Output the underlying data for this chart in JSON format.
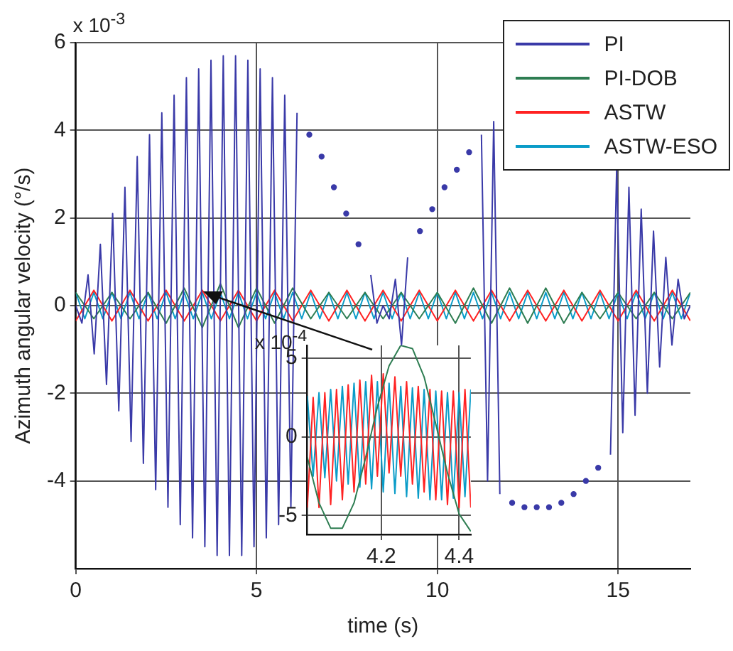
{
  "chart_data": [
    {
      "type": "line",
      "xlabel": "time (s)",
      "ylabel": "Azimuth angular velocity (°/s)",
      "xlim": [
        0,
        17
      ],
      "xticks": [
        0,
        5,
        10,
        15
      ],
      "ylim": [
        -6,
        6
      ],
      "yticks": [
        -4,
        -2,
        0,
        2,
        4,
        6
      ],
      "grid": true,
      "legend": "top right",
      "annotations": [
        "x 10$^{-3}$"
      ],
      "series": [
        {
          "name": "PI",
          "color": "#3a3aa8",
          "x": [
            0,
            0.17,
            0.34,
            0.51,
            0.68,
            0.85,
            1.02,
            1.19,
            1.36,
            1.53,
            1.7,
            1.87,
            2.04,
            2.21,
            2.38,
            2.55,
            2.72,
            2.89,
            3.06,
            3.23,
            3.4,
            3.57,
            3.74,
            3.91,
            4.08,
            4.25,
            4.42,
            4.59,
            4.76,
            4.93,
            5.1,
            5.27,
            5.44,
            5.61,
            5.78,
            5.95,
            6.12,
            6.29,
            6.46,
            6.63,
            6.8,
            6.97,
            7.14,
            7.31,
            7.48,
            7.65,
            7.82,
            7.99,
            8.16,
            8.33,
            8.5,
            8.67,
            8.84,
            9.01,
            9.18,
            9.35,
            9.52,
            9.69,
            9.86,
            10.03,
            10.2,
            10.37,
            10.54,
            10.71,
            10.88,
            11.05,
            11.22,
            11.39,
            11.56,
            11.73,
            11.9,
            12.07,
            12.24,
            12.41,
            12.58,
            12.75,
            12.92,
            13.09,
            13.26,
            13.43,
            13.6,
            13.77,
            13.94,
            14.11,
            14.28,
            14.45,
            14.62,
            14.79,
            14.96,
            15.13,
            15.3,
            15.47,
            15.64,
            15.81,
            15.98,
            16.15,
            16.32,
            16.49,
            16.66,
            16.83,
            17
          ],
          "values": [
            0,
            -0.4,
            0.7,
            -1.1,
            1.4,
            -1.8,
            2.1,
            -2.4,
            2.7,
            -3.1,
            3.4,
            -3.6,
            3.9,
            -4.2,
            4.4,
            -4.6,
            4.8,
            -5.0,
            5.2,
            -5.3,
            5.4,
            -5.5,
            5.6,
            -5.7,
            5.7,
            -5.7,
            5.7,
            -5.7,
            5.6,
            -5.5,
            5.4,
            -5.3,
            5.2,
            -5.0,
            4.8,
            -4.6,
            4.4,
            null,
            3.9,
            null,
            3.4,
            null,
            2.7,
            null,
            2.1,
            null,
            1.4,
            null,
            0.7,
            -0.4,
            0,
            -0.3,
            0.6,
            -0.9,
            1.1,
            null,
            1.7,
            null,
            2.2,
            null,
            2.7,
            null,
            3.1,
            null,
            3.5,
            null,
            3.9,
            -4.0,
            4.2,
            -4.3,
            null,
            -4.5,
            null,
            -4.6,
            null,
            -4.6,
            null,
            -4.6,
            null,
            -4.5,
            null,
            -4.3,
            null,
            -4.0,
            null,
            -3.7,
            null,
            -3.4,
            3.1,
            -2.9,
            2.7,
            -2.5,
            2.2,
            -2.0,
            1.7,
            -1.4,
            1.1,
            -0.9,
            0.6,
            -0.3,
            0
          ]
        },
        {
          "name": "PI-DOB",
          "color": "#2e7d52",
          "x": [
            0,
            0.5,
            1,
            1.5,
            2,
            2.5,
            3,
            3.5,
            4,
            4.5,
            5,
            5.5,
            6,
            6.5,
            7,
            7.5,
            8,
            8.5,
            9,
            9.5,
            10,
            10.5,
            11,
            11.5,
            12,
            12.5,
            13,
            13.5,
            14,
            14.5,
            15,
            15.5,
            16,
            16.5,
            17
          ],
          "values": [
            0.3,
            -0.3,
            0.3,
            -0.3,
            0.3,
            -0.4,
            0.4,
            -0.5,
            0.5,
            -0.5,
            0.4,
            -0.4,
            0.4,
            -0.3,
            0.3,
            -0.3,
            0.3,
            -0.3,
            0.3,
            -0.3,
            0.3,
            -0.4,
            0.4,
            -0.4,
            0.4,
            -0.4,
            0.4,
            -0.4,
            0.3,
            -0.3,
            0.3,
            -0.3,
            0.3,
            -0.3,
            0.3
          ]
        },
        {
          "name": "ASTW",
          "color": "#ff2222",
          "x": [
            0,
            0.5,
            1,
            1.5,
            2,
            2.5,
            3,
            3.5,
            4,
            4.5,
            5,
            5.5,
            6,
            6.5,
            7,
            7.5,
            8,
            8.5,
            9,
            9.5,
            10,
            10.5,
            11,
            11.5,
            12,
            12.5,
            13,
            13.5,
            14,
            14.5,
            15,
            15.5,
            16,
            16.5,
            17
          ],
          "values": [
            -0.35,
            0.35,
            -0.35,
            0.35,
            -0.35,
            0.35,
            -0.35,
            0.35,
            -0.35,
            0.35,
            -0.35,
            0.35,
            -0.35,
            0.35,
            -0.35,
            0.35,
            -0.35,
            0.35,
            -0.35,
            0.35,
            -0.35,
            0.35,
            -0.35,
            0.35,
            -0.35,
            0.35,
            -0.35,
            0.35,
            -0.35,
            0.35,
            -0.35,
            0.35,
            -0.35,
            0.35,
            -0.35
          ]
        },
        {
          "name": "ASTW-ESO",
          "color": "#0a9cc8",
          "x": [
            0,
            0.25,
            0.5,
            0.75,
            1,
            1.25,
            1.5,
            1.75,
            2,
            2.25,
            2.5,
            2.75,
            3,
            3.25,
            3.5,
            3.75,
            4,
            4.25,
            4.5,
            4.75,
            5,
            5.25,
            5.5,
            5.75,
            6,
            6.25,
            6.5,
            6.75,
            7,
            7.25,
            7.5,
            7.75,
            8,
            8.25,
            8.5,
            8.75,
            9,
            9.25,
            9.5,
            9.75,
            10,
            10.25,
            10.5,
            10.75,
            11,
            11.25,
            11.5,
            11.75,
            12,
            12.25,
            12.5,
            12.75,
            13,
            13.25,
            13.5,
            13.75,
            14,
            14.25,
            14.5,
            14.75,
            15,
            15.25,
            15.5,
            15.75,
            16,
            16.25,
            16.5,
            16.75,
            17
          ],
          "values": [
            0.3,
            -0.3,
            0.3,
            -0.3,
            0.3,
            -0.3,
            0.3,
            -0.3,
            0.3,
            -0.3,
            0.3,
            -0.3,
            0.3,
            -0.3,
            0.3,
            -0.3,
            0.3,
            -0.3,
            0.3,
            -0.3,
            0.3,
            -0.3,
            0.3,
            -0.3,
            0.3,
            -0.3,
            0.3,
            -0.3,
            0.3,
            -0.3,
            0.3,
            -0.3,
            0.3,
            -0.3,
            0.3,
            -0.3,
            0.3,
            -0.3,
            0.3,
            -0.3,
            0.3,
            -0.3,
            0.3,
            -0.3,
            0.3,
            -0.3,
            0.3,
            -0.3,
            0.3,
            -0.3,
            0.3,
            -0.3,
            0.3,
            -0.3,
            0.3,
            -0.3,
            0.3,
            -0.3,
            0.3,
            -0.3,
            0.3,
            -0.3,
            0.3,
            -0.3,
            0.3,
            -0.3,
            0.3,
            -0.3,
            0.3
          ]
        }
      ]
    },
    {
      "type": "line",
      "xlim": [
        4.01,
        4.43
      ],
      "xticks": [
        4.2,
        4.4
      ],
      "ylim": [
        -6.2,
        5.8
      ],
      "yticks": [
        -5,
        0,
        5
      ],
      "grid": true,
      "annotations": [
        "x 10$^{-4}$"
      ],
      "series": [
        {
          "color": "#2e7d52",
          "x": [
            4.01,
            4.04,
            4.07,
            4.1,
            4.13,
            4.16,
            4.19,
            4.22,
            4.25,
            4.28,
            4.31,
            4.34,
            4.37,
            4.4,
            4.43
          ],
          "values": [
            -1.3,
            -4.2,
            -5.8,
            -5.8,
            -4.2,
            -1.3,
            1.9,
            4.5,
            5.8,
            5.6,
            3.8,
            0.8,
            -2.3,
            -4.9,
            -6.0
          ]
        },
        {
          "color": "#ff2222",
          "x": [
            4.01,
            4.025,
            4.04,
            4.055,
            4.07,
            4.085,
            4.1,
            4.115,
            4.13,
            4.145,
            4.16,
            4.175,
            4.19,
            4.205,
            4.22,
            4.235,
            4.25,
            4.265,
            4.28,
            4.295,
            4.31,
            4.325,
            4.34,
            4.355,
            4.37,
            4.385,
            4.4,
            4.415,
            4.43
          ],
          "values": [
            -4.5,
            2.5,
            -4.5,
            2.8,
            -4.3,
            3.0,
            -4.0,
            3.3,
            -3.5,
            3.6,
            -3.0,
            3.9,
            -2.5,
            4.0,
            -2.3,
            3.8,
            -2.5,
            3.5,
            -3.0,
            3.2,
            -3.5,
            3.0,
            -4.0,
            2.9,
            -4.3,
            2.9,
            -4.5,
            3.0,
            -4.5
          ]
        },
        {
          "color": "#0a9cc8",
          "x": [
            4.01,
            4.025,
            4.04,
            4.055,
            4.07,
            4.085,
            4.1,
            4.115,
            4.13,
            4.145,
            4.16,
            4.175,
            4.19,
            4.205,
            4.22,
            4.235,
            4.25,
            4.265,
            4.28,
            4.295,
            4.31,
            4.325,
            4.34,
            4.355,
            4.37,
            4.385,
            4.4,
            4.415,
            4.43
          ],
          "values": [
            2.6,
            -2.5,
            2.8,
            -2.6,
            3.0,
            -2.8,
            3.2,
            -3.0,
            3.4,
            -3.2,
            3.5,
            -3.3,
            3.5,
            -3.5,
            3.4,
            -3.6,
            3.2,
            -3.8,
            3.1,
            -3.9,
            3.0,
            -4.0,
            2.9,
            -4.0,
            2.8,
            -3.9,
            2.8,
            -3.8,
            3.0
          ]
        }
      ]
    }
  ]
}
